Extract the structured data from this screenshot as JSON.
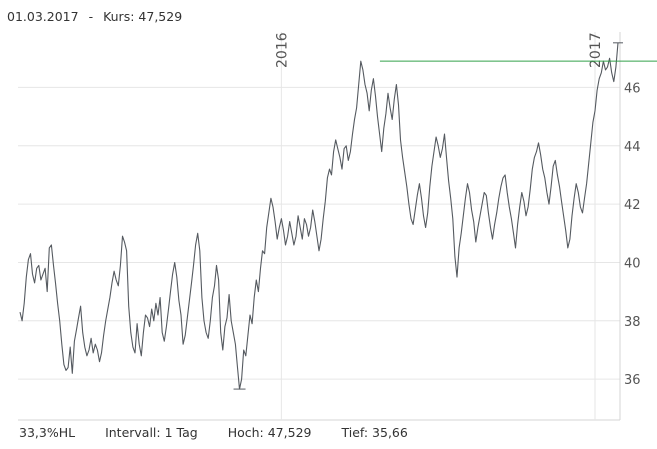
{
  "header": {
    "date": "01.03.2017",
    "separator": "-",
    "kurs_label": "Kurs:",
    "kurs_value": "47,529"
  },
  "footer": {
    "range": "33,3%HL",
    "interval_label": "Intervall:",
    "interval_value": "1 Tag",
    "high_label": "Hoch:",
    "high_value": "47,529",
    "low_label": "Tief:",
    "low_value": "35,66"
  },
  "chart_data": {
    "type": "line",
    "title": "",
    "xlabel": "",
    "ylabel": "",
    "ylim": [
      34.6,
      47.9
    ],
    "y_ticks": [
      "36",
      "38",
      "40",
      "42",
      "44",
      "46"
    ],
    "x_year_labels": [
      {
        "label": "2016",
        "index": 125
      },
      {
        "label": "2017",
        "index": 275
      }
    ],
    "high_line": 46.9,
    "line_color": "#555a60",
    "high_line_color": "#33a04a",
    "grid": true,
    "series": [
      {
        "values": [
          38.3,
          38.0,
          38.6,
          39.5,
          40.1,
          40.3,
          39.6,
          39.3,
          39.8,
          39.9,
          39.4,
          39.6,
          39.8,
          39.0,
          40.5,
          40.6,
          39.9,
          39.3,
          38.6,
          38.0,
          37.2,
          36.5,
          36.3,
          36.4,
          37.1,
          36.2,
          37.3,
          37.7,
          38.1,
          38.5,
          37.6,
          37.1,
          36.8,
          37.0,
          37.4,
          36.9,
          37.2,
          37.0,
          36.6,
          36.9,
          37.5,
          38.0,
          38.4,
          38.8,
          39.3,
          39.7,
          39.4,
          39.2,
          39.9,
          40.9,
          40.7,
          40.4,
          38.5,
          37.6,
          37.1,
          36.9,
          37.9,
          37.2,
          36.8,
          37.6,
          38.2,
          38.1,
          37.8,
          38.4,
          38.0,
          38.6,
          38.2,
          38.8,
          37.6,
          37.3,
          37.8,
          38.4,
          39.0,
          39.6,
          40.0,
          39.5,
          38.7,
          38.2,
          37.2,
          37.5,
          38.1,
          38.7,
          39.3,
          39.9,
          40.6,
          41.0,
          40.4,
          38.8,
          38.0,
          37.6,
          37.4,
          38.0,
          38.8,
          39.2,
          39.9,
          39.4,
          37.6,
          37.0,
          37.8,
          38.1,
          38.9,
          38.0,
          37.6,
          37.2,
          36.4,
          35.66,
          36.0,
          37.0,
          36.8,
          37.5,
          38.2,
          37.9,
          38.8,
          39.4,
          39.0,
          39.8,
          40.4,
          40.3,
          41.2,
          41.7,
          42.2,
          41.9,
          41.4,
          40.8,
          41.2,
          41.5,
          41.1,
          40.6,
          40.9,
          41.4,
          41.0,
          40.6,
          40.9,
          41.6,
          41.2,
          40.8,
          41.5,
          41.3,
          40.9,
          41.2,
          41.8,
          41.4,
          40.9,
          40.4,
          40.8,
          41.5,
          42.1,
          42.9,
          43.2,
          43.0,
          43.8,
          44.2,
          43.9,
          43.6,
          43.2,
          43.9,
          44.0,
          43.5,
          43.8,
          44.4,
          44.9,
          45.3,
          46.1,
          46.9,
          46.6,
          46.1,
          45.8,
          45.2,
          45.9,
          46.3,
          45.7,
          45.0,
          44.4,
          43.8,
          44.6,
          45.1,
          45.8,
          45.3,
          44.9,
          45.6,
          46.1,
          45.4,
          44.2,
          43.6,
          43.1,
          42.6,
          42.0,
          41.5,
          41.3,
          41.8,
          42.3,
          42.7,
          42.2,
          41.6,
          41.2,
          41.7,
          42.6,
          43.3,
          43.8,
          44.3,
          44.0,
          43.6,
          43.9,
          44.4,
          43.6,
          42.8,
          42.2,
          41.5,
          40.2,
          39.5,
          40.5,
          41.0,
          41.6,
          42.2,
          42.7,
          42.4,
          41.8,
          41.4,
          40.7,
          41.2,
          41.6,
          42.0,
          42.4,
          42.3,
          41.7,
          41.2,
          40.8,
          41.3,
          41.7,
          42.2,
          42.6,
          42.9,
          43.0,
          42.4,
          41.9,
          41.5,
          41.0,
          40.5,
          41.3,
          41.9,
          42.4,
          42.1,
          41.6,
          41.9,
          42.5,
          43.2,
          43.6,
          43.8,
          44.1,
          43.7,
          43.2,
          42.9,
          42.4,
          42.0,
          42.6,
          43.3,
          43.5,
          43.0,
          42.6,
          42.1,
          41.6,
          41.1,
          40.5,
          40.8,
          41.6,
          42.2,
          42.7,
          42.4,
          41.9,
          41.7,
          42.2,
          42.7,
          43.4,
          44.1,
          44.8,
          45.2,
          45.9,
          46.3,
          46.5,
          46.9,
          46.6,
          46.7,
          47.0,
          46.5,
          46.2,
          46.7,
          47.529
        ]
      }
    ]
  }
}
